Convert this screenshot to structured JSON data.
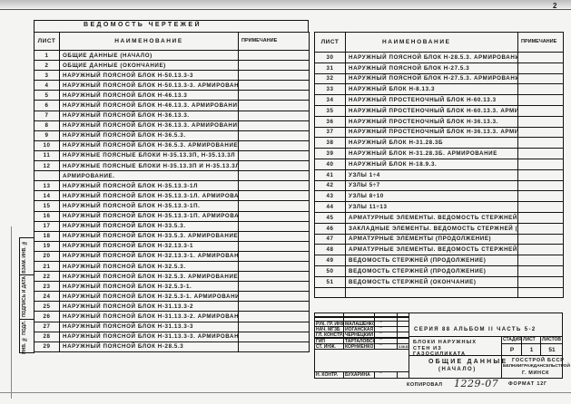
{
  "page_number": "2",
  "left_table": {
    "title": "Ведомость чертежей",
    "headers": {
      "sheet": "Лист",
      "name": "Наименование",
      "note": "Примечание"
    },
    "rows": [
      {
        "sheet": "1",
        "name": "Общие данные (начало)"
      },
      {
        "sheet": "2",
        "name": "Общие данные (окончание)"
      },
      {
        "sheet": "3",
        "name": "Наружный поясной блок Н-50.13.3-3"
      },
      {
        "sheet": "4",
        "name": "Наружный поясной блок Н-50.13.3-3. Армирование"
      },
      {
        "sheet": "5",
        "name": "Наружный поясной блок Н-46.13.3"
      },
      {
        "sheet": "6",
        "name": "Наружный поясной блок Н-46.13.3. Армирование."
      },
      {
        "sheet": "7",
        "name": "Наружный поясной блок Н-36.13.3."
      },
      {
        "sheet": "8",
        "name": "Наружный поясной блок Н-36.13.3. Армирование."
      },
      {
        "sheet": "9",
        "name": "Наружный поясной блок Н-36.5.3."
      },
      {
        "sheet": "10",
        "name": "Наружный поясной блок Н-36.5.3. Армирование."
      },
      {
        "sheet": "11",
        "name": "Наружные поясные блоки Н-35.13.3п, Н-35.13.3л"
      },
      {
        "sheet": "12",
        "name": "Наружные поясные блоки Н-35.13.3п и Н-35.13.3л."
      },
      {
        "sheet": "",
        "name": "Армирование."
      },
      {
        "sheet": "13",
        "name": "Наружный поясной блок Н-35.13.3-1л"
      },
      {
        "sheet": "14",
        "name": "Наружный поясной блок Н-35.13.3-1л. Армирование."
      },
      {
        "sheet": "15",
        "name": "Наружный поясной блок Н-35.13.3-1п."
      },
      {
        "sheet": "16",
        "name": "Наружный поясной блок Н-35.13.3-1п. Армирование."
      },
      {
        "sheet": "17",
        "name": "Наружный поясной блок Н-33.5.3."
      },
      {
        "sheet": "18",
        "name": "Наружный поясной блок Н-33.5.3. Армирование."
      },
      {
        "sheet": "19",
        "name": "Наружный поясной блок Н-32.13.3-1"
      },
      {
        "sheet": "20",
        "name": "Наружный поясной блок Н-32.13.3-1. Армирование."
      },
      {
        "sheet": "21",
        "name": "Наружный поясной блок Н-32.5.3."
      },
      {
        "sheet": "22",
        "name": "Наружный поясной блок Н-32.5.3. Армирование."
      },
      {
        "sheet": "23",
        "name": "Наружный поясной блок Н-32.5.3-1."
      },
      {
        "sheet": "24",
        "name": "Наружный поясной блок Н-32.5.3-1. Армирование."
      },
      {
        "sheet": "25",
        "name": "Наружный поясной блок Н-31.13.3-2"
      },
      {
        "sheet": "26",
        "name": "Наружный поясной блок Н-31.13.3-2. Армирование"
      },
      {
        "sheet": "27",
        "name": "Наружный поясной блок Н-31.13.3-3"
      },
      {
        "sheet": "28",
        "name": "Наружный поясной блок Н-31.13.3-3. Армирование"
      },
      {
        "sheet": "29",
        "name": "Наружный поясной блок Н-28.5.3"
      }
    ]
  },
  "right_table": {
    "headers": {
      "sheet": "Лист",
      "name": "Наименование",
      "note": "Примечание"
    },
    "rows": [
      {
        "sheet": "30",
        "name": "Наружный поясной блок Н-28.5.3. Армирование"
      },
      {
        "sheet": "31",
        "name": "Наружный поясной блок Н-27.5.3"
      },
      {
        "sheet": "32",
        "name": "Наружный поясной блок Н-27.5.3. Армирование."
      },
      {
        "sheet": "33",
        "name": "Наружный блок Н-8.13.3"
      },
      {
        "sheet": "34",
        "name": "Наружный простеночный блок Н-60.13.3"
      },
      {
        "sheet": "35",
        "name": "Наружный простеночный блок Н-60.13.3. Армирование."
      },
      {
        "sheet": "36",
        "name": "Наружный простеночный блок Н-36.13.3."
      },
      {
        "sheet": "37",
        "name": "Наружный простеночный блок Н-36.13.3. Армирование"
      },
      {
        "sheet": "38",
        "name": "Наружный блок Н-31.28.3б"
      },
      {
        "sheet": "39",
        "name": "Наружный блок Н-31.28.3б. Армирование"
      },
      {
        "sheet": "40",
        "name": "Наружный блок Н-18.9.3."
      },
      {
        "sheet": "41",
        "name": "Узлы 1÷4"
      },
      {
        "sheet": "42",
        "name": "Узлы 5÷7"
      },
      {
        "sheet": "43",
        "name": "Узлы 8÷10"
      },
      {
        "sheet": "44",
        "name": "Узлы 11÷13"
      },
      {
        "sheet": "45",
        "name": "Арматурные элементы. Ведомость стержней (начало)"
      },
      {
        "sheet": "46",
        "name": "Закладные элементы. Ведомость стержней (продолжение)"
      },
      {
        "sheet": "47",
        "name": "Арматурные элементы (продолжение)"
      },
      {
        "sheet": "48",
        "name": "Арматурные элементы. Ведомость стержней (продолжение)"
      },
      {
        "sheet": "49",
        "name": "Ведомость стержней (продолжение)"
      },
      {
        "sheet": "50",
        "name": "Ведомость стержней (продолжение)"
      },
      {
        "sheet": "51",
        "name": "Ведомость стержней (окончание)"
      },
      {
        "sheet": "",
        "name": ""
      }
    ]
  },
  "side_strip": {
    "inv_no": "Инв. № подл.",
    "signature_date": "Подпись и дата",
    "replaced_inv": "Взам. инв. №"
  },
  "title_block": {
    "staff": [
      {
        "role": "Рук. гр. инж.",
        "name": "Малашенкова"
      },
      {
        "role": "Нач. МГ3б",
        "name": "Иоганская"
      },
      {
        "role": "Гл. констр.",
        "name": "Чернецкий"
      },
      {
        "role": "ГИП",
        "name": "Тарталовская"
      },
      {
        "role": "Ст. инж.",
        "name": "Корниенко",
        "date": "3.06.87"
      },
      {
        "role": "Н. контр.",
        "name": "Бухарина"
      }
    ],
    "series": "Серия 88 альбом II часть 5-2",
    "subject": "Блоки наружных стен из газосиликата",
    "stage_label": "Стадия",
    "sheet_label": "Лист",
    "sheets_label": "Листов",
    "stage": "Р",
    "sheet": "1",
    "sheets": "51",
    "drawing_title": "Общие данные",
    "drawing_subtitle": "(начало)",
    "organization": "Госстрой БССР",
    "institute": "Белнииграждансельстрой",
    "city": "г. Минск",
    "copied_label": "Копировал",
    "copied_no": "1229-07",
    "format": "Формат 12г"
  }
}
